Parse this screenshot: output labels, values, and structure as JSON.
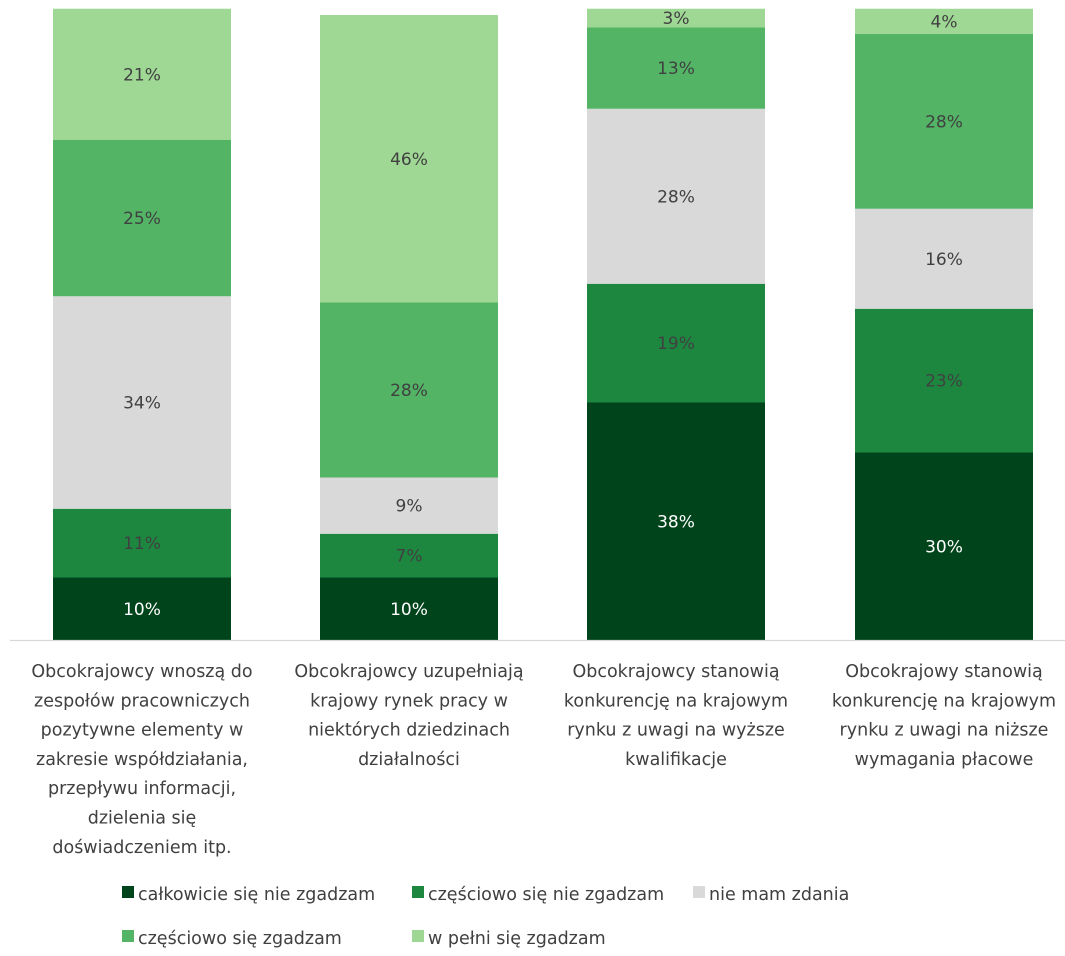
{
  "chart_data": {
    "type": "bar",
    "stacked": true,
    "percent": true,
    "categories": [
      [
        "Obcokrajowcy wnoszą do",
        "zespołów pracowniczych",
        "pozytywne elementy w",
        "zakresie współdziałania,",
        "przepływu informacji,",
        "dzielenia się",
        "doświadczeniem itp."
      ],
      [
        "Obcokrajowcy uzupełniają",
        "krajowy rynek pracy w",
        "niektórych dziedzinach",
        "działalności"
      ],
      [
        "Obcokrajowcy stanowią",
        "konkurencję na krajowym",
        "rynku z uwagi na wyższe",
        "kwalifikacje"
      ],
      [
        "Obcokrajowy stanowią",
        "konkurencję na krajowym",
        "rynku z uwagi na niższe",
        "wymagania płacowe"
      ]
    ],
    "series": [
      {
        "name": "całkowicie się nie zgadzam",
        "color": "#00441b",
        "label_color": "#ffffff",
        "values": [
          10,
          10,
          38,
          30
        ],
        "labels": [
          "10%",
          "10%",
          "38%",
          "30%"
        ]
      },
      {
        "name": "częściowo się nie zgadzam",
        "color": "#1d8740",
        "label_color": "#404040",
        "values": [
          11,
          7,
          19,
          23
        ],
        "labels": [
          "11%",
          "7%",
          "19%",
          "23%"
        ]
      },
      {
        "name": "nie mam zdania",
        "color": "#d9d9d9",
        "label_color": "#404040",
        "values": [
          34,
          9,
          28,
          16
        ],
        "labels": [
          "34%",
          "9%",
          "28%",
          "16%"
        ]
      },
      {
        "name": "częściowo się zgadzam",
        "color": "#53b466",
        "label_color": "#404040",
        "values": [
          25,
          28,
          13,
          28
        ],
        "labels": [
          "25%",
          "28%",
          "13%",
          "28%"
        ]
      },
      {
        "name": "w pełni się zgadzam",
        "color": "#9fd895",
        "label_color": "#404040",
        "values": [
          21,
          46,
          3,
          4
        ],
        "labels": [
          "21%",
          "46%",
          "3%",
          "4%"
        ]
      }
    ],
    "ylim": [
      0,
      100
    ],
    "grid": false,
    "legend_position": "bottom"
  }
}
